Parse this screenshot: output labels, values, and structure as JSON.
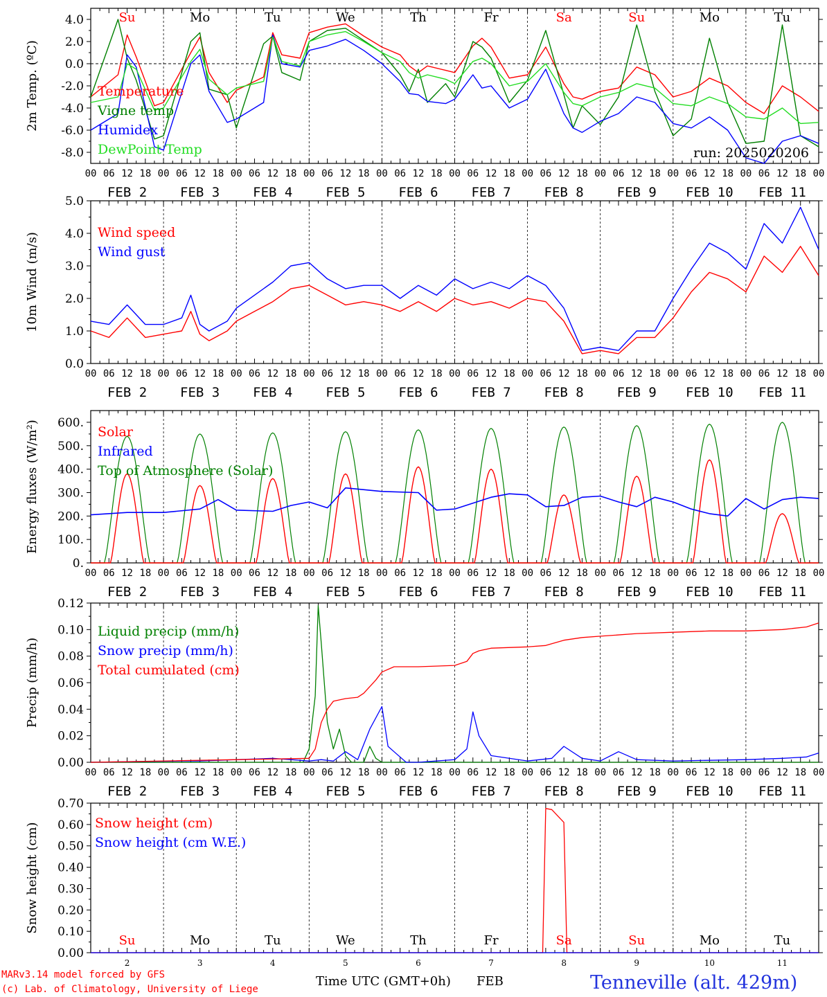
{
  "footer": {
    "credit_line1": "MARv3.14 model forced by GFS",
    "credit_line2": "(c) Lab. of Climatology, University of Liege",
    "xlabel_left": "Time UTC (GMT+0h)",
    "xlabel_right": "FEB",
    "station": "Tenneville (alt. 429m)",
    "run": "run: 2025020206"
  },
  "colors": {
    "red": "#ff0000",
    "green": "#008000",
    "blue": "#0000ff",
    "lime": "#22dd22"
  },
  "time_axis": {
    "days": [
      "FEB  2",
      "FEB  3",
      "FEB  4",
      "FEB  5",
      "FEB  6",
      "FEB  7",
      "FEB  8",
      "FEB  9",
      "FEB 10",
      "FEB 11"
    ],
    "hour_ticks": [
      "00",
      "06",
      "12",
      "18"
    ],
    "weekdays": [
      "Su",
      "Mo",
      "Tu",
      "We",
      "Th",
      "Fr",
      "Sa",
      "Su",
      "Mo",
      "Tu"
    ],
    "weekday_colors": [
      "#ff0000",
      "#000000",
      "#000000",
      "#000000",
      "#000000",
      "#000000",
      "#ff0000",
      "#ff0000",
      "#000000",
      "#000000"
    ],
    "day_numbers": [
      "2",
      "3",
      "4",
      "5",
      "6",
      "7",
      "8",
      "9",
      "10",
      "11"
    ]
  },
  "chart_data": [
    {
      "id": "temp",
      "type": "line",
      "ylabel": "2m Temp. (ºC)",
      "ylim": [
        -9,
        5
      ],
      "yticks": [
        4,
        2,
        0,
        -2,
        -4,
        -6,
        -8
      ],
      "ytick_labels": [
        "4.0",
        "2.0",
        "0.0",
        "-2.0",
        "-4.0",
        "-6.0",
        "-8.0"
      ],
      "zero_line": true,
      "legend": [
        "Temperature",
        "Vigne temp",
        "Humidex",
        "DewPoint Temp"
      ],
      "x_hours": [
        0,
        9,
        12,
        15,
        21,
        24,
        33,
        36,
        39,
        45,
        48,
        57,
        60,
        63,
        69,
        72,
        78,
        84,
        90,
        96,
        102,
        105,
        108,
        111,
        117,
        120,
        126,
        129,
        132,
        138,
        144,
        150,
        156,
        159,
        162,
        168,
        174,
        180,
        186,
        192,
        198,
        204,
        210,
        216,
        222,
        228,
        234,
        240
      ],
      "series": [
        {
          "name": "Temperature",
          "color": "#ff0000",
          "values": [
            -3.0,
            -1.0,
            2.6,
            0.6,
            -3.8,
            -3.5,
            1.0,
            2.4,
            -0.8,
            -3.5,
            -2.4,
            -1.2,
            2.8,
            0.8,
            0.5,
            2.8,
            3.3,
            3.6,
            2.5,
            1.5,
            0.8,
            -0.2,
            -0.8,
            -0.2,
            -0.6,
            -0.8,
            1.6,
            2.3,
            1.5,
            -1.3,
            -1.0,
            1.5,
            -1.8,
            -3.0,
            -3.2,
            -2.5,
            -2.2,
            -0.3,
            -1.0,
            -3.0,
            -2.5,
            -1.3,
            -2.0,
            -3.5,
            -4.5,
            -2.0,
            -3.0,
            -4.3
          ]
        },
        {
          "name": "Vigne temp",
          "color": "#008000",
          "values": [
            -3.0,
            4.0,
            0.5,
            -1.5,
            -6.8,
            -6.5,
            2.0,
            2.8,
            -2.3,
            -2.8,
            -5.8,
            1.8,
            2.5,
            -0.8,
            -1.5,
            2.0,
            3.0,
            3.2,
            2.1,
            1.0,
            -1.0,
            -2.5,
            -0.5,
            -3.5,
            -1.8,
            -3.0,
            2.0,
            1.5,
            0.5,
            -3.5,
            -1.5,
            3.0,
            -2.8,
            -5.8,
            -3.8,
            -5.5,
            -3.0,
            3.5,
            -2.5,
            -6.5,
            -5.0,
            2.3,
            -3.5,
            -7.2,
            -7.0,
            3.5,
            -6.5,
            -7.5
          ]
        },
        {
          "name": "Humidex",
          "color": "#0000ff",
          "values": [
            -6.0,
            -4.5,
            0.8,
            -0.3,
            -7.5,
            -7.8,
            0.0,
            0.8,
            -2.5,
            -5.3,
            -5.0,
            -3.5,
            2.6,
            0.0,
            -0.3,
            1.2,
            1.6,
            2.2,
            1.2,
            0.0,
            -1.6,
            -2.7,
            -2.8,
            -3.4,
            -3.6,
            -3.2,
            -1.0,
            -2.2,
            -2.0,
            -4.0,
            -3.2,
            -0.5,
            -4.5,
            -5.8,
            -6.2,
            -5.2,
            -4.5,
            -3.0,
            -3.5,
            -5.4,
            -5.8,
            -4.8,
            -6.0,
            -8.5,
            -9.0,
            -7.0,
            -6.5,
            -7.2
          ]
        },
        {
          "name": "DewPoint Temp",
          "color": "#22dd22",
          "values": [
            -3.5,
            -3.0,
            0.0,
            -0.5,
            -4.2,
            -4.0,
            0.2,
            1.3,
            -1.4,
            -2.8,
            -2.2,
            -1.6,
            2.4,
            0.2,
            -0.2,
            2.0,
            2.6,
            2.9,
            2.0,
            1.0,
            0.2,
            -0.8,
            -1.3,
            -1.0,
            -1.4,
            -1.8,
            0.2,
            0.5,
            0.0,
            -2.0,
            -1.6,
            0.0,
            -2.6,
            -3.6,
            -3.8,
            -3.0,
            -2.6,
            -1.8,
            -2.2,
            -3.6,
            -3.8,
            -3.0,
            -3.6,
            -4.8,
            -5.0,
            -4.0,
            -5.4,
            -5.3
          ]
        }
      ]
    },
    {
      "id": "wind",
      "type": "line",
      "ylabel": "10m Wind (m/s)",
      "ylim": [
        0,
        5
      ],
      "yticks": [
        0,
        1,
        2,
        3,
        4,
        5
      ],
      "ytick_labels": [
        "0.0",
        "1.0",
        "2.0",
        "3.0",
        "4.0",
        "5.0"
      ],
      "legend": [
        "Wind speed",
        "Wind gust"
      ],
      "x_hours": [
        0,
        6,
        12,
        18,
        24,
        30,
        33,
        36,
        39,
        45,
        48,
        54,
        60,
        66,
        72,
        78,
        84,
        90,
        96,
        102,
        108,
        114,
        120,
        126,
        132,
        138,
        144,
        150,
        156,
        162,
        168,
        174,
        180,
        186,
        192,
        198,
        204,
        210,
        216,
        222,
        228,
        234,
        240
      ],
      "series": [
        {
          "name": "Wind speed",
          "color": "#ff0000",
          "values": [
            1.0,
            0.8,
            1.4,
            0.8,
            0.9,
            1.0,
            1.6,
            0.9,
            0.7,
            1.0,
            1.3,
            1.6,
            1.9,
            2.3,
            2.4,
            2.1,
            1.8,
            1.9,
            1.8,
            1.6,
            1.9,
            1.6,
            2.0,
            1.8,
            1.9,
            1.7,
            2.0,
            1.9,
            1.3,
            0.3,
            0.4,
            0.3,
            0.8,
            0.8,
            1.4,
            2.2,
            2.8,
            2.6,
            2.2,
            3.3,
            2.8,
            3.6,
            2.7
          ]
        },
        {
          "name": "Wind gust",
          "color": "#0000ff",
          "values": [
            1.3,
            1.2,
            1.8,
            1.2,
            1.2,
            1.4,
            2.1,
            1.2,
            1.0,
            1.3,
            1.7,
            2.1,
            2.5,
            3.0,
            3.1,
            2.6,
            2.3,
            2.4,
            2.4,
            2.0,
            2.4,
            2.1,
            2.6,
            2.3,
            2.5,
            2.3,
            2.7,
            2.4,
            1.7,
            0.4,
            0.5,
            0.4,
            1.0,
            1.0,
            2.0,
            2.9,
            3.7,
            3.4,
            2.9,
            4.3,
            3.7,
            4.8,
            3.5
          ]
        }
      ]
    },
    {
      "id": "energy",
      "type": "line",
      "ylabel": "Energy fluxes (W/m²)",
      "ylim": [
        0,
        650
      ],
      "yticks": [
        0,
        100,
        200,
        300,
        400,
        500,
        600
      ],
      "ytick_labels": [
        "0.",
        "100.",
        "200.",
        "300.",
        "400.",
        "500.",
        "600."
      ],
      "legend": [
        "Solar",
        "Infrared",
        "Top of Atmosphere (Solar)"
      ],
      "daily_peaks_solar": [
        380,
        330,
        360,
        380,
        410,
        400,
        290,
        370,
        440,
        210
      ],
      "daily_peaks_toa": [
        540,
        550,
        555,
        560,
        568,
        574,
        580,
        586,
        592,
        600
      ],
      "infrared_x_hours": [
        0,
        12,
        24,
        36,
        42,
        48,
        60,
        66,
        72,
        78,
        84,
        96,
        108,
        114,
        120,
        132,
        138,
        144,
        150,
        156,
        162,
        168,
        174,
        180,
        186,
        192,
        198,
        204,
        210,
        216,
        222,
        228,
        234,
        240
      ],
      "infrared_values": [
        205,
        215,
        215,
        230,
        270,
        225,
        220,
        245,
        260,
        235,
        320,
        305,
        300,
        225,
        230,
        280,
        295,
        290,
        240,
        245,
        280,
        285,
        260,
        240,
        280,
        260,
        230,
        210,
        200,
        275,
        230,
        270,
        280,
        275
      ],
      "series": [
        {
          "name": "Solar",
          "color": "#ff0000"
        },
        {
          "name": "Infrared",
          "color": "#0000ff"
        },
        {
          "name": "Top of Atmosphere (Solar)",
          "color": "#008000"
        }
      ]
    },
    {
      "id": "precip",
      "type": "line",
      "ylabel": "Precip (mm/h)",
      "ylim": [
        0,
        0.12
      ],
      "yticks": [
        0,
        0.02,
        0.04,
        0.06,
        0.08,
        0.1,
        0.12
      ],
      "ytick_labels": [
        "0.00",
        "0.02",
        "0.04",
        "0.06",
        "0.08",
        "0.10",
        "0.12"
      ],
      "legend": [
        "Liquid precip (mm/h)",
        "Snow precip (mm/h)",
        "Total cumulated (cm)"
      ],
      "series": [
        {
          "name": "Liquid precip (mm/h)",
          "color": "#008000",
          "x_hours": [
            0,
            70,
            72,
            74,
            75,
            76,
            78,
            80,
            82,
            84,
            86,
            90,
            92,
            94,
            96,
            100,
            240
          ],
          "values": [
            0,
            0,
            0.01,
            0.05,
            0.118,
            0.09,
            0.03,
            0.01,
            0.025,
            0.005,
            0,
            0,
            0.012,
            0.003,
            0,
            0,
            0
          ]
        },
        {
          "name": "Snow precip (mm/h)",
          "color": "#0000ff",
          "x_hours": [
            0,
            30,
            36,
            48,
            60,
            72,
            76,
            80,
            84,
            88,
            92,
            96,
            98,
            100,
            104,
            108,
            120,
            124,
            126,
            128,
            132,
            144,
            152,
            156,
            162,
            168,
            174,
            180,
            192,
            216,
            228,
            236,
            240
          ],
          "values": [
            0,
            0.001,
            0.001,
            0.002,
            0.003,
            0.001,
            0.002,
            0.001,
            0.008,
            0.002,
            0.025,
            0.042,
            0.012,
            0.008,
            0,
            0,
            0.002,
            0.01,
            0.038,
            0.02,
            0.005,
            0.001,
            0.003,
            0.012,
            0.003,
            0.001,
            0.008,
            0.002,
            0.001,
            0.002,
            0.003,
            0.004,
            0.007
          ]
        },
        {
          "name": "Total cumulated (cm)",
          "color": "#ff0000",
          "x_hours": [
            0,
            24,
            48,
            72,
            74,
            76,
            78,
            80,
            84,
            88,
            90,
            94,
            96,
            100,
            108,
            120,
            124,
            126,
            128,
            132,
            144,
            150,
            156,
            162,
            168,
            180,
            192,
            204,
            216,
            228,
            236,
            240
          ],
          "values": [
            0,
            0.001,
            0.002,
            0.003,
            0.01,
            0.03,
            0.04,
            0.046,
            0.048,
            0.049,
            0.052,
            0.062,
            0.068,
            0.072,
            0.072,
            0.073,
            0.076,
            0.082,
            0.084,
            0.086,
            0.087,
            0.088,
            0.092,
            0.094,
            0.095,
            0.097,
            0.098,
            0.099,
            0.099,
            0.1,
            0.102,
            0.105
          ]
        }
      ]
    },
    {
      "id": "snow",
      "type": "line",
      "ylabel": "Snow height (cm)",
      "ylim": [
        0,
        0.7
      ],
      "yticks": [
        0,
        0.1,
        0.2,
        0.3,
        0.4,
        0.5,
        0.6,
        0.7
      ],
      "ytick_labels": [
        "0.00",
        "0.10",
        "0.20",
        "0.30",
        "0.40",
        "0.50",
        "0.60",
        "0.70"
      ],
      "legend": [
        "Snow height (cm)",
        "Snow height (cm W.E.)"
      ],
      "series": [
        {
          "name": "Snow height (cm)",
          "color": "#ff0000",
          "x_hours": [
            0,
            149,
            150,
            152,
            156,
            157,
            240
          ],
          "values": [
            0,
            0,
            0.675,
            0.67,
            0.61,
            0,
            0
          ]
        },
        {
          "name": "Snow height (cm W.E.)",
          "color": "#0000ff",
          "x_hours": [
            0,
            240
          ],
          "values": [
            0,
            0
          ]
        }
      ]
    }
  ]
}
